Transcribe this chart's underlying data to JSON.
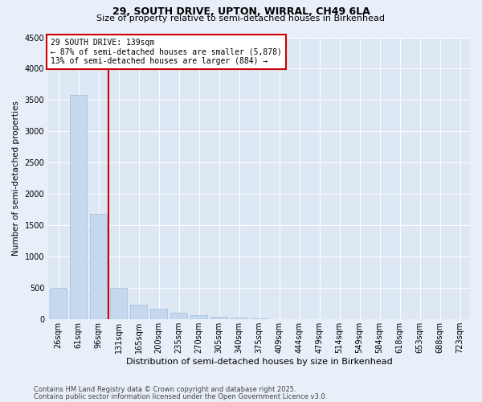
{
  "title1": "29, SOUTH DRIVE, UPTON, WIRRAL, CH49 6LA",
  "title2": "Size of property relative to semi-detached houses in Birkenhead",
  "xlabel": "Distribution of semi-detached houses by size in Birkenhead",
  "ylabel": "Number of semi-detached properties",
  "categories": [
    "26sqm",
    "61sqm",
    "96sqm",
    "131sqm",
    "165sqm",
    "200sqm",
    "235sqm",
    "270sqm",
    "305sqm",
    "340sqm",
    "375sqm",
    "409sqm",
    "444sqm",
    "479sqm",
    "514sqm",
    "549sqm",
    "584sqm",
    "618sqm",
    "653sqm",
    "688sqm",
    "723sqm"
  ],
  "values": [
    500,
    3580,
    1680,
    510,
    240,
    165,
    110,
    70,
    45,
    30,
    18,
    8,
    4,
    2,
    1,
    0,
    0,
    0,
    0,
    0,
    0
  ],
  "bar_color": "#c5d8ed",
  "bar_edge_color": "#a0bcd8",
  "red_line_color": "#cc0000",
  "box_edge_color": "#cc0000",
  "property_label": "29 SOUTH DRIVE: 139sqm",
  "annotation_line1": "← 87% of semi-detached houses are smaller (5,878)",
  "annotation_line2": "13% of semi-detached houses are larger (884) →",
  "ylim": [
    0,
    4500
  ],
  "yticks": [
    0,
    500,
    1000,
    1500,
    2000,
    2500,
    3000,
    3500,
    4000,
    4500
  ],
  "footer1": "Contains HM Land Registry data © Crown copyright and database right 2025.",
  "footer2": "Contains public sector information licensed under the Open Government Licence v3.0.",
  "bg_color": "#e8eff8",
  "plot_bg_color": "#dde8f4",
  "grid_color": "#ffffff",
  "title1_fontsize": 9,
  "title2_fontsize": 8,
  "xlabel_fontsize": 8,
  "ylabel_fontsize": 7.5,
  "tick_fontsize": 7,
  "annotation_fontsize": 7,
  "footer_fontsize": 6
}
